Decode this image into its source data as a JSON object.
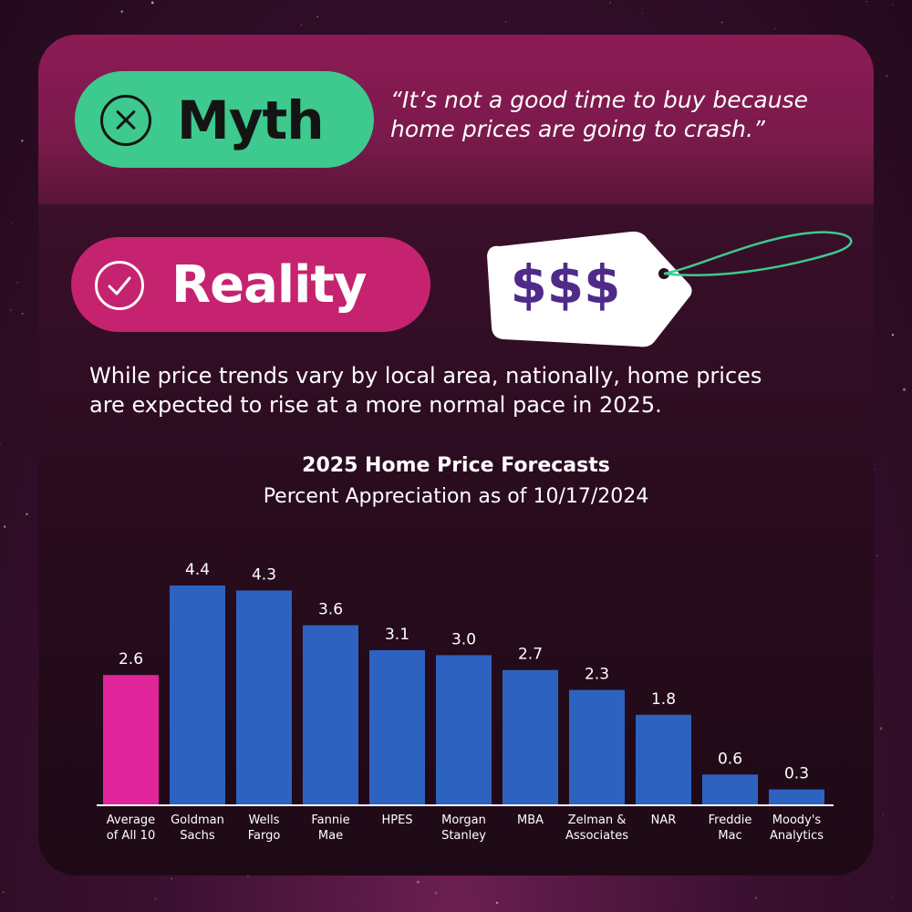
{
  "myth": {
    "label": "Myth",
    "icon": "x-circle-icon",
    "quote": "“It’s not a good time to buy because\nhome prices are going to crash.”"
  },
  "reality": {
    "label": "Reality",
    "icon": "check-circle-icon",
    "text": "While price trends vary by local area, nationally, home prices\nare expected to rise at a more normal pace in 2025."
  },
  "price_tag": {
    "text": "$$$",
    "icon": "price-tag-icon"
  },
  "colors": {
    "myth_green": "#3ec98e",
    "reality_pink": "#c5236f",
    "bar_blue": "#2e62c1",
    "bar_pink": "#e0259a",
    "tag_text": "#4f2a8a"
  },
  "chart_data": {
    "type": "bar",
    "title": "2025 Home Price Forecasts",
    "subtitle": "Percent Appreciation as of 10/17/2024",
    "categories": [
      [
        "Average",
        "of All 10"
      ],
      [
        "Goldman",
        "Sachs"
      ],
      [
        "Wells",
        "Fargo"
      ],
      [
        "Fannie",
        "Mae"
      ],
      [
        "HPES"
      ],
      [
        "Morgan",
        "Stanley"
      ],
      [
        "MBA"
      ],
      [
        "Zelman &",
        "Associates"
      ],
      [
        "NAR"
      ],
      [
        "Freddie",
        "Mac"
      ],
      [
        "Moody's",
        "Analytics"
      ]
    ],
    "values": [
      2.6,
      4.4,
      4.3,
      3.6,
      3.1,
      3.0,
      2.7,
      2.3,
      1.8,
      0.6,
      0.3
    ],
    "value_labels": [
      "2.6",
      "4.4",
      "4.3",
      "3.6",
      "3.1",
      "3.0",
      "2.7",
      "2.3",
      "1.8",
      "0.6",
      "0.3"
    ],
    "highlight_index": 0,
    "ylim": [
      0,
      4.4
    ],
    "grid": false,
    "xlabel": "",
    "ylabel": ""
  }
}
